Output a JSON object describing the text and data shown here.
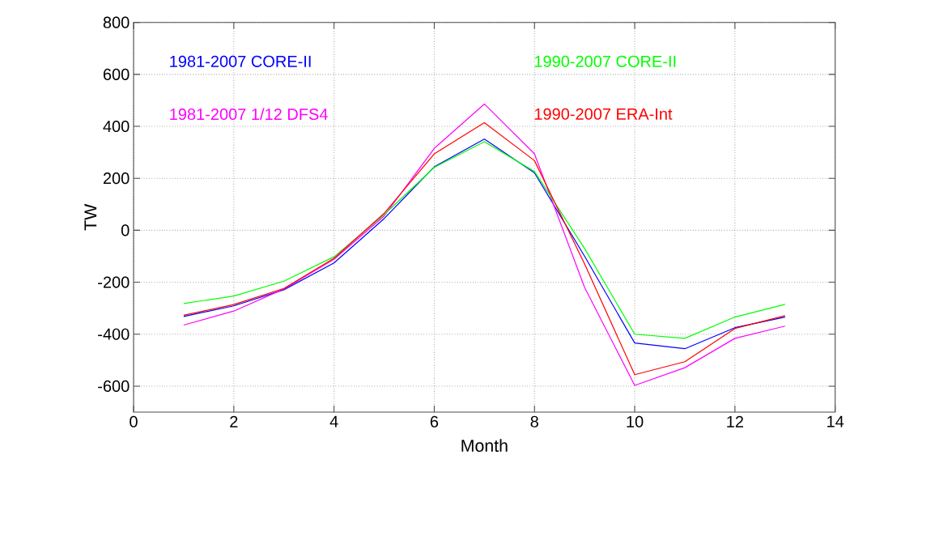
{
  "chart_data": {
    "type": "line",
    "xlabel": "Month",
    "ylabel": "TW",
    "x": [
      1,
      2,
      3,
      4,
      5,
      6,
      7,
      8,
      9,
      10,
      11,
      12,
      13
    ],
    "series": [
      {
        "name": "1981-2007 CORE-II",
        "color": "#0000ff",
        "values": [
          -332,
          -291,
          -229,
          -126,
          45,
          244,
          351,
          221,
          -100,
          -434,
          -456,
          -375,
          -334
        ]
      },
      {
        "name": "1981-2007 1/12 DFS4",
        "color": "#ff00ff",
        "values": [
          -365,
          -311,
          -226,
          -112,
          55,
          315,
          486,
          294,
          -220,
          -597,
          -529,
          -416,
          -369
        ]
      },
      {
        "name": "1990-2007 CORE-II",
        "color": "#00ff00",
        "values": [
          -282,
          -253,
          -196,
          -102,
          60,
          242,
          341,
          226,
          -70,
          -400,
          -416,
          -334,
          -285
        ]
      },
      {
        "name": "1990-2007 ERA-Int",
        "color": "#ff0000",
        "values": [
          -327,
          -286,
          -224,
          -108,
          65,
          294,
          414,
          268,
          -130,
          -556,
          -506,
          -378,
          -329
        ]
      }
    ],
    "xlim": [
      0,
      14
    ],
    "xticks": [
      0,
      2,
      4,
      6,
      8,
      10,
      12,
      14
    ],
    "ylim": [
      -700,
      800
    ],
    "yticks": [
      -600,
      -400,
      -200,
      0,
      200,
      400,
      600,
      800
    ],
    "grid": true,
    "marker": "none",
    "line_style": "solid"
  }
}
